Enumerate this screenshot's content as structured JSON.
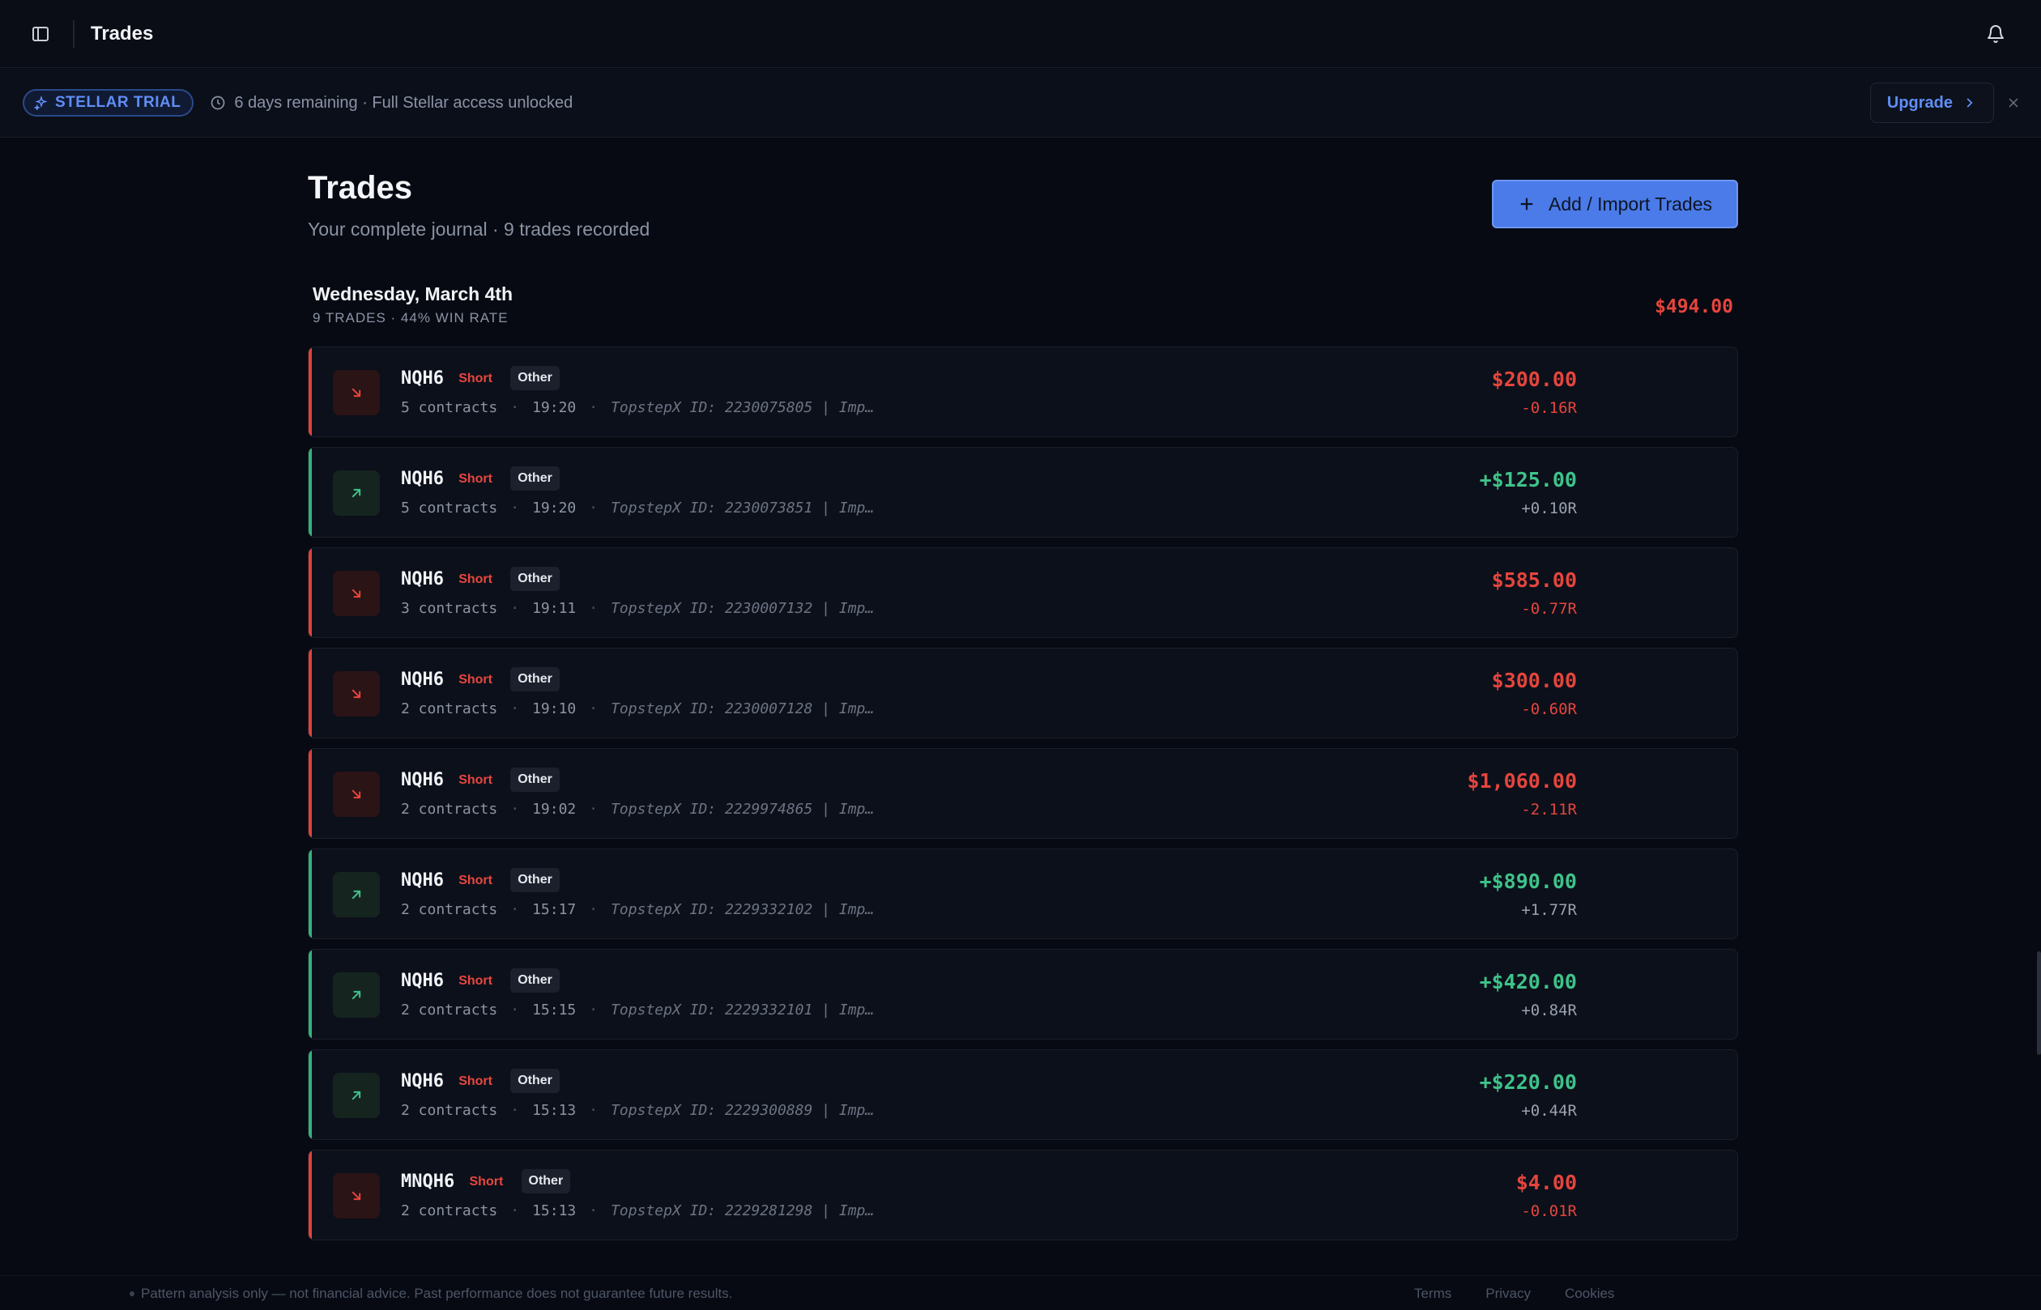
{
  "topbar": {
    "title": "Trades"
  },
  "trial": {
    "badge": "STELLAR TRIAL",
    "info": "6 days remaining · Full Stellar access unlocked",
    "upgrade_label": "Upgrade"
  },
  "page": {
    "title": "Trades",
    "subtitle": "Your complete journal · 9 trades recorded",
    "add_button": "Add / Import Trades"
  },
  "day": {
    "title": "Wednesday, March 4th",
    "stats": "9 TRADES · 44% WIN RATE",
    "total": "$494.00"
  },
  "trades": [
    {
      "result": "loss",
      "symbol": "NQH6",
      "side": "Short",
      "tag": "Other",
      "contracts": "5 contracts",
      "time": "19:20",
      "note": "TopstepX ID: 2230075805 | Imp…",
      "pnl": "$200.00",
      "r": "-0.16R"
    },
    {
      "result": "win",
      "symbol": "NQH6",
      "side": "Short",
      "tag": "Other",
      "contracts": "5 contracts",
      "time": "19:20",
      "note": "TopstepX ID: 2230073851 | Imp…",
      "pnl": "+$125.00",
      "r": "+0.10R"
    },
    {
      "result": "loss",
      "symbol": "NQH6",
      "side": "Short",
      "tag": "Other",
      "contracts": "3 contracts",
      "time": "19:11",
      "note": "TopstepX ID: 2230007132 | Imp…",
      "pnl": "$585.00",
      "r": "-0.77R"
    },
    {
      "result": "loss",
      "symbol": "NQH6",
      "side": "Short",
      "tag": "Other",
      "contracts": "2 contracts",
      "time": "19:10",
      "note": "TopstepX ID: 2230007128 | Imp…",
      "pnl": "$300.00",
      "r": "-0.60R"
    },
    {
      "result": "loss",
      "symbol": "NQH6",
      "side": "Short",
      "tag": "Other",
      "contracts": "2 contracts",
      "time": "19:02",
      "note": "TopstepX ID: 2229974865 | Imp…",
      "pnl": "$1,060.00",
      "r": "-2.11R"
    },
    {
      "result": "win",
      "symbol": "NQH6",
      "side": "Short",
      "tag": "Other",
      "contracts": "2 contracts",
      "time": "15:17",
      "note": "TopstepX ID: 2229332102 | Imp…",
      "pnl": "+$890.00",
      "r": "+1.77R"
    },
    {
      "result": "win",
      "symbol": "NQH6",
      "side": "Short",
      "tag": "Other",
      "contracts": "2 contracts",
      "time": "15:15",
      "note": "TopstepX ID: 2229332101 | Imp…",
      "pnl": "+$420.00",
      "r": "+0.84R"
    },
    {
      "result": "win",
      "symbol": "NQH6",
      "side": "Short",
      "tag": "Other",
      "contracts": "2 contracts",
      "time": "15:13",
      "note": "TopstepX ID: 2229300889 | Imp…",
      "pnl": "+$220.00",
      "r": "+0.44R"
    },
    {
      "result": "loss",
      "symbol": "MNQH6",
      "side": "Short",
      "tag": "Other",
      "contracts": "2 contracts",
      "time": "15:13",
      "note": "TopstepX ID: 2229281298 | Imp…",
      "pnl": "$4.00",
      "r": "-0.01R"
    }
  ],
  "footer": {
    "disclaimer": "Pattern analysis only — not financial advice. Past performance does not guarantee future results.",
    "links": [
      "Terms",
      "Privacy",
      "Cookies"
    ]
  },
  "colors": {
    "loss": "#e5453d",
    "win": "#3ec38a",
    "accent": "#4a7be8"
  }
}
